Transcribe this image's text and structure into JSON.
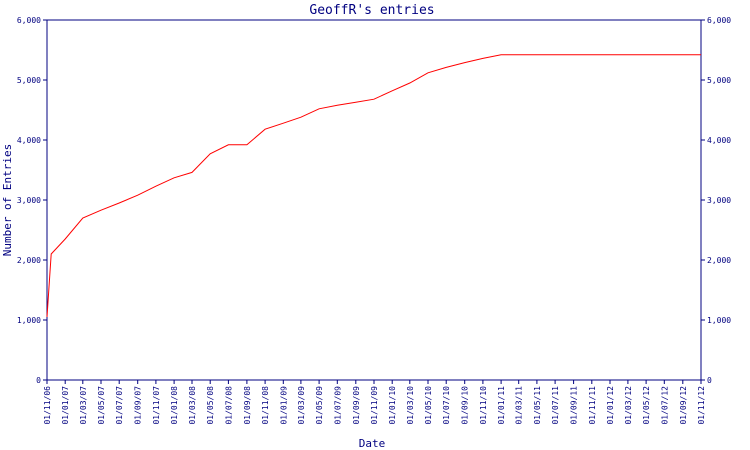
{
  "colors": {
    "axis": "#000080",
    "text": "#000080",
    "line": "#ff0000",
    "background": "#ffffff"
  },
  "chart_data": {
    "type": "line",
    "title": "GeoffR's entries",
    "xlabel": "Date",
    "ylabel": "Number of Entries",
    "ylim": [
      0,
      6000
    ],
    "y_ticks": [
      0,
      1000,
      2000,
      3000,
      4000,
      5000,
      6000
    ],
    "y_tick_labels": [
      "0",
      "1,000",
      "2,000",
      "3,000",
      "4,000",
      "5,000",
      "6,000"
    ],
    "secondary_y_axis": true,
    "grid": false,
    "x_tick_labels": [
      "01/11/06",
      "01/01/07",
      "01/03/07",
      "01/05/07",
      "01/07/07",
      "01/09/07",
      "01/11/07",
      "01/01/08",
      "01/03/08",
      "01/05/08",
      "01/07/08",
      "01/09/08",
      "01/11/08",
      "01/01/09",
      "01/03/09",
      "01/05/09",
      "01/07/09",
      "01/09/09",
      "01/11/09",
      "01/01/10",
      "01/03/10",
      "01/05/10",
      "01/07/10",
      "01/09/10",
      "01/11/10",
      "01/01/11",
      "01/03/11",
      "01/05/11",
      "01/07/11",
      "01/09/11",
      "01/11/11",
      "01/01/12",
      "01/03/12",
      "01/05/12",
      "01/07/12",
      "01/09/12",
      "01/11/12"
    ],
    "series": [
      {
        "x": [
          "2006-11-01",
          "2006-11-15",
          "2007-01-01",
          "2007-03-01",
          "2007-05-01",
          "2007-07-01",
          "2007-09-01",
          "2007-11-01",
          "2008-01-01",
          "2008-03-01",
          "2008-05-01",
          "2008-07-01",
          "2008-09-01",
          "2008-11-01",
          "2009-01-01",
          "2009-03-01",
          "2009-05-01",
          "2009-07-01",
          "2009-09-01",
          "2009-11-01",
          "2010-01-01",
          "2010-03-01",
          "2010-05-01",
          "2010-07-01",
          "2010-09-01",
          "2010-11-01",
          "2011-01-01",
          "2011-11-01",
          "2012-11-01"
        ],
        "values": [
          1050,
          2100,
          2350,
          2700,
          2830,
          2950,
          3080,
          3230,
          3370,
          3460,
          3770,
          3920,
          3920,
          4180,
          4280,
          4380,
          4520,
          4580,
          4630,
          4680,
          4820,
          4950,
          5120,
          5210,
          5290,
          5360,
          5420,
          5420,
          5420
        ]
      }
    ]
  }
}
